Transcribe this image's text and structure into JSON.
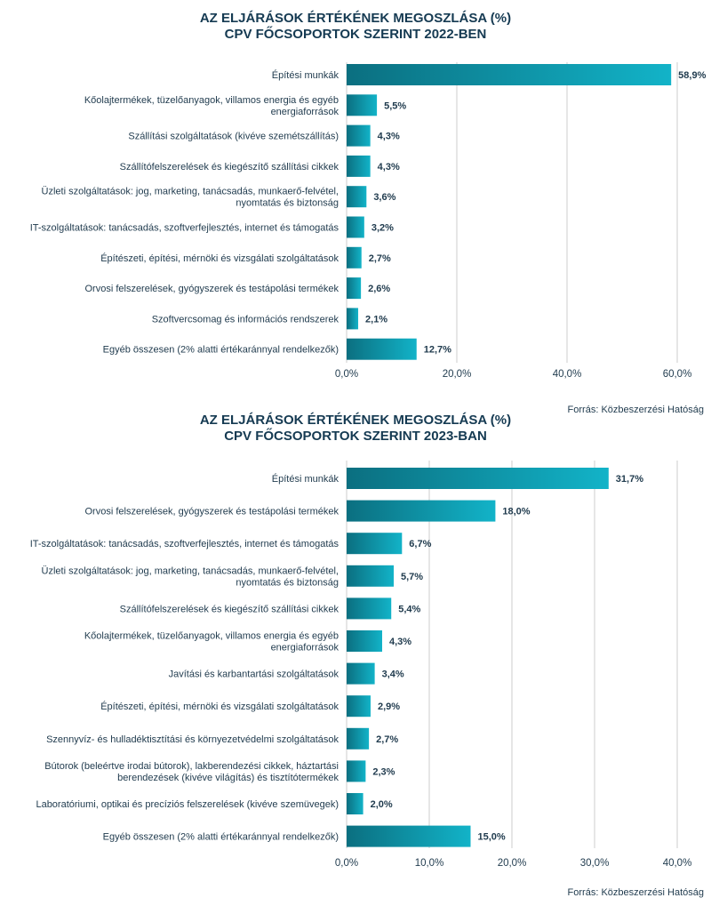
{
  "chart_data": [
    {
      "type": "bar",
      "orientation": "horizontal",
      "title": "AZ ELJÁRÁSOK ÉRTÉKÉNEK MEGOSZLÁSA (%)",
      "subtitle": "CPV FŐCSOPORTOK SZERINT 2022-BEN",
      "categories": [
        "Építési munkák",
        "Kőolajtermékek, tüzelőanyagok, villamos energia és egyéb energiaforrások",
        "Szállítási szolgáltatások (kivéve szemétszállítás)",
        "Szállítófelszerelések és kiegészítő szállítási cikkek",
        "Üzleti szolgáltatások: jog, marketing, tanácsadás, munkaerő-felvétel, nyomtatás és biztonság",
        "IT-szolgáltatások: tanácsadás, szoftverfejlesztés, internet és támogatás",
        "Építészeti, építési, mérnöki és vizsgálati szolgáltatások",
        "Orvosi felszerelések, gyógyszerek és testápolási termékek",
        "Szoftvercsomag és információs rendszerek",
        "Egyéb összesen (2% alatti értékaránnyal rendelkezők)"
      ],
      "category_lines": [
        [
          "Építési munkák"
        ],
        [
          "Kőolajtermékek, tüzelőanyagok, villamos energia és egyéb",
          "energiaforrások"
        ],
        [
          "Szállítási szolgáltatások (kivéve szemétszállítás)"
        ],
        [
          "Szállítófelszerelések és kiegészítő szállítási cikkek"
        ],
        [
          "Üzleti szolgáltatások: jog, marketing, tanácsadás, munkaerő-felvétel,",
          "nyomtatás és biztonság"
        ],
        [
          "IT-szolgáltatások: tanácsadás, szoftverfejlesztés, internet és támogatás"
        ],
        [
          "Építészeti, építési, mérnöki és vizsgálati szolgáltatások"
        ],
        [
          "Orvosi felszerelések, gyógyszerek és testápolási termékek"
        ],
        [
          "Szoftvercsomag és információs rendszerek"
        ],
        [
          "Egyéb összesen (2% alatti értékaránnyal rendelkezők)"
        ]
      ],
      "values": [
        58.9,
        5.5,
        4.3,
        4.3,
        3.6,
        3.2,
        2.7,
        2.6,
        2.1,
        12.7
      ],
      "value_labels": [
        "58,9%",
        "5,5%",
        "4,3%",
        "4,3%",
        "3,6%",
        "3,2%",
        "2,7%",
        "2,6%",
        "2,1%",
        "12,7%"
      ],
      "xlim": [
        0,
        60
      ],
      "ticks": [
        0,
        20,
        40,
        60
      ],
      "tick_labels": [
        "0,0%",
        "20,0%",
        "40,0%",
        "60,0%"
      ],
      "grid": true,
      "source": "Forrás: Közbeszerzési Hatóság",
      "colors": {
        "bar_dark": "#0b6f80",
        "bar_light": "#12b3c8",
        "grid": "#cccccc"
      }
    },
    {
      "type": "bar",
      "orientation": "horizontal",
      "title": "AZ ELJÁRÁSOK ÉRTÉKÉNEK MEGOSZLÁSA (%)",
      "subtitle": "CPV FŐCSOPORTOK SZERINT 2023-BAN",
      "categories": [
        "Építési munkák",
        "Orvosi felszerelések, gyógyszerek és testápolási termékek",
        "IT-szolgáltatások: tanácsadás, szoftverfejlesztés, internet és támogatás",
        "Üzleti szolgáltatások: jog, marketing, tanácsadás, munkaerő-felvétel, nyomtatás és biztonság",
        "Szállítófelszerelések és kiegészítő szállítási cikkek",
        "Kőolajtermékek, tüzelőanyagok, villamos energia és egyéb energiaforrások",
        "Javítási és karbantartási szolgáltatások",
        "Építészeti, építési, mérnöki és vizsgálati szolgáltatások",
        "Szennyvíz- és hulladéktisztítási és környezetvédelmi szolgáltatások",
        "Bútorok (beleértve irodai bútorok), lakberendezési cikkek, háztartási berendezések (kivéve világítás) és tisztítótermékek",
        "Laboratóriumi, optikai és precíziós felszerelések (kivéve szemüvegek)",
        "Egyéb összesen (2% alatti értékaránnyal rendelkezők)"
      ],
      "category_lines": [
        [
          "Építési munkák"
        ],
        [
          "Orvosi felszerelések, gyógyszerek és testápolási termékek"
        ],
        [
          "IT-szolgáltatások: tanácsadás, szoftverfejlesztés, internet és támogatás"
        ],
        [
          "Üzleti szolgáltatások: jog, marketing, tanácsadás, munkaerő-felvétel,",
          "nyomtatás és biztonság"
        ],
        [
          "Szállítófelszerelések és kiegészítő szállítási cikkek"
        ],
        [
          "Kőolajtermékek, tüzelőanyagok, villamos energia és egyéb",
          "energiaforrások"
        ],
        [
          "Javítási és karbantartási szolgáltatások"
        ],
        [
          "Építészeti, építési, mérnöki és vizsgálati szolgáltatások"
        ],
        [
          "Szennyvíz- és hulladéktisztítási és környezetvédelmi szolgáltatások"
        ],
        [
          "Bútorok (beleértve irodai bútorok), lakberendezési cikkek, háztartási",
          "berendezések (kivéve világítás) és tisztítótermékek"
        ],
        [
          "Laboratóriumi, optikai és precíziós felszerelések (kivéve szemüvegek)"
        ],
        [
          "Egyéb összesen (2% alatti értékaránnyal rendelkezők)"
        ]
      ],
      "values": [
        31.7,
        18.0,
        6.7,
        5.7,
        5.4,
        4.3,
        3.4,
        2.9,
        2.7,
        2.3,
        2.0,
        15.0
      ],
      "value_labels": [
        "31,7%",
        "18,0%",
        "6,7%",
        "5,7%",
        "5,4%",
        "4,3%",
        "3,4%",
        "2,9%",
        "2,7%",
        "2,3%",
        "2,0%",
        "15,0%"
      ],
      "xlim": [
        0,
        40
      ],
      "ticks": [
        0,
        10,
        20,
        30,
        40
      ],
      "tick_labels": [
        "0,0%",
        "10,0%",
        "20,0%",
        "30,0%",
        "40,0%"
      ],
      "grid": true,
      "source": "Forrás: Közbeszerzési Hatóság",
      "colors": {
        "bar_dark": "#0b6f80",
        "bar_light": "#12b3c8",
        "grid": "#cccccc"
      }
    }
  ]
}
